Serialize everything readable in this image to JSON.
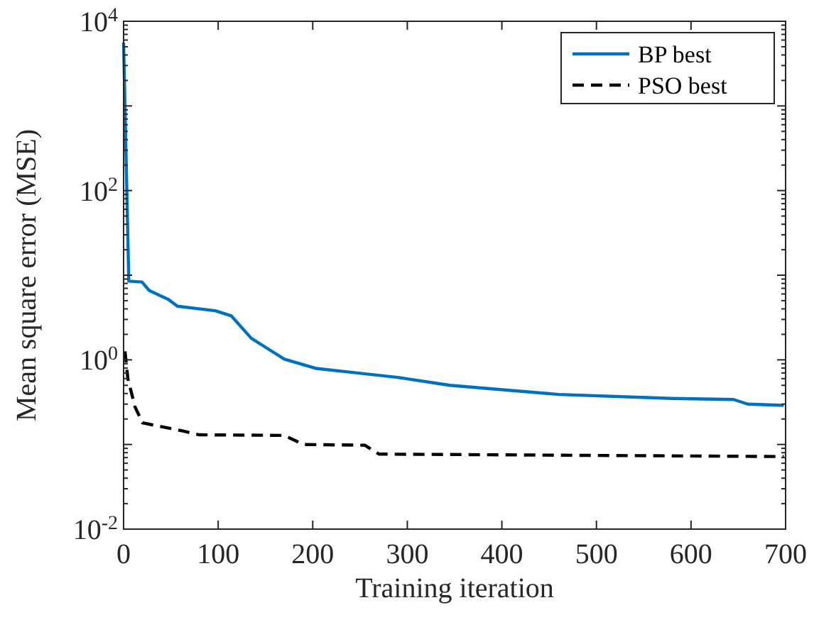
{
  "chart_data": {
    "type": "line",
    "xlabel": "Training iteration",
    "ylabel": "Mean square error (MSE)",
    "log": "y",
    "xlim": [
      0,
      700
    ],
    "xticks": [
      0,
      100,
      200,
      300,
      400,
      500,
      600,
      700
    ],
    "ylim": [
      0.01,
      10000
    ],
    "yticks": [
      {
        "value": 0.01,
        "label": "10$^{-2}$"
      },
      {
        "value": 0.1,
        "label": null
      },
      {
        "value": 1,
        "label": "10$^{0}$"
      },
      {
        "value": 10,
        "label": null
      },
      {
        "value": 100,
        "label": "10$^{2}$"
      },
      {
        "value": 1000,
        "label": null
      },
      {
        "value": 10000,
        "label": "10$^{4}$"
      }
    ],
    "legend": "top right",
    "grid": false,
    "series": [
      {
        "name": "BP best",
        "color": "#0072bd",
        "line_style": "solid",
        "x": [
          0,
          5.5,
          19.5,
          27,
          47,
          57,
          97,
          114,
          135,
          155,
          170,
          204,
          290,
          345,
          460,
          580,
          645,
          660,
          698
        ],
        "values": [
          5600,
          8.5,
          8.3,
          6.6,
          5.2,
          4.3,
          3.8,
          3.3,
          1.8,
          1.3,
          1.02,
          0.79,
          0.62,
          0.5,
          0.39,
          0.35,
          0.34,
          0.3,
          0.29
        ]
      },
      {
        "name": "PSO best",
        "color": "#000000",
        "line_style": "dashed",
        "x": [
          1.5,
          4.5,
          12,
          20,
          62,
          80,
          170,
          190,
          255,
          270,
          698
        ],
        "values": [
          1.26,
          0.6,
          0.28,
          0.18,
          0.145,
          0.13,
          0.128,
          0.1,
          0.098,
          0.077,
          0.072
        ]
      }
    ]
  }
}
